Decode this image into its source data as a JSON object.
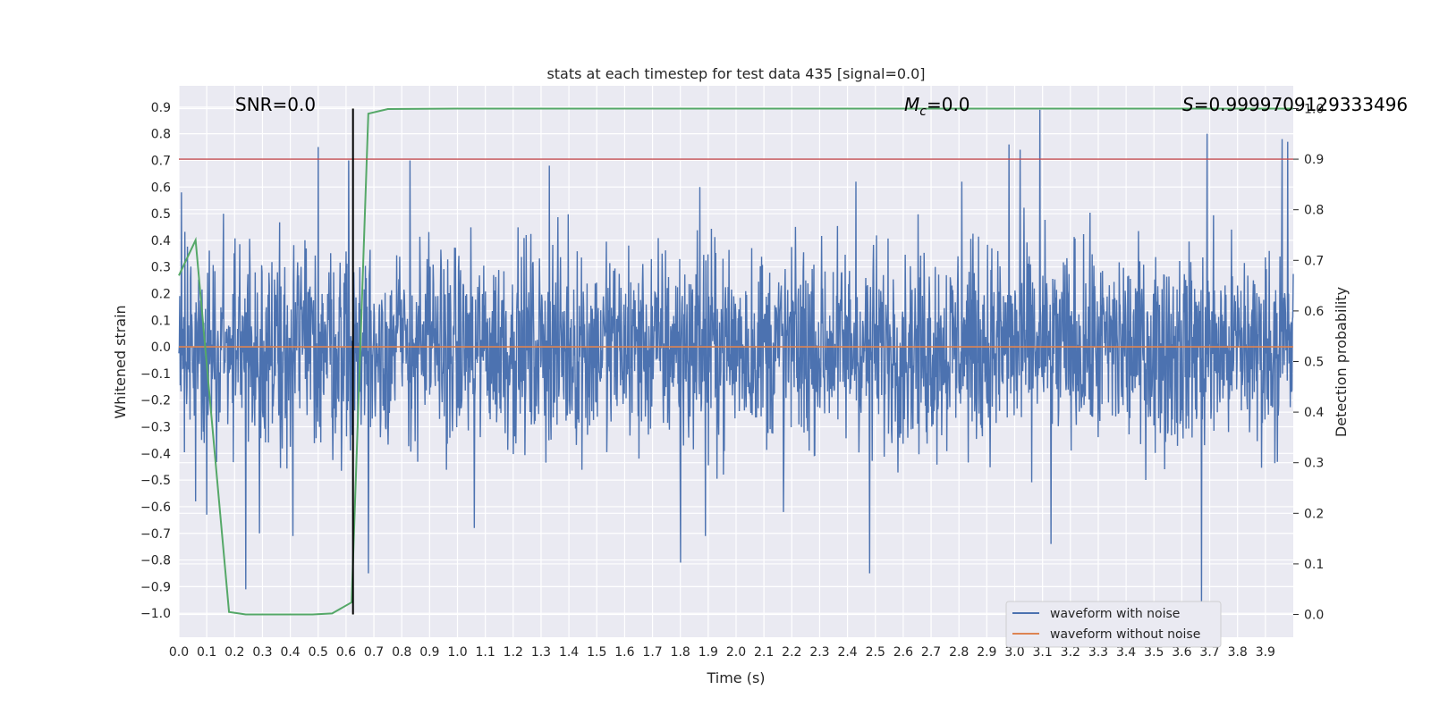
{
  "chart_data": {
    "type": "line",
    "title": "stats at each timestep for test data 435 [signal=0.0]",
    "xlabel": "Time (s)",
    "ylabel": "Whitened strain",
    "y2label": "Detection probability",
    "xlim": [
      0.0,
      4.0
    ],
    "ylim": [
      -1.09,
      0.98
    ],
    "y2lim": [
      -0.045,
      1.045
    ],
    "xticks": [
      "0.0",
      "0.1",
      "0.2",
      "0.3",
      "0.4",
      "0.5",
      "0.6",
      "0.7",
      "0.8",
      "0.9",
      "1.0",
      "1.1",
      "1.2",
      "1.3",
      "1.4",
      "1.5",
      "1.6",
      "1.7",
      "1.8",
      "1.9",
      "2.0",
      "2.1",
      "2.2",
      "2.3",
      "2.4",
      "2.5",
      "2.6",
      "2.7",
      "2.8",
      "2.9",
      "3.0",
      "3.1",
      "3.2",
      "3.3",
      "3.4",
      "3.5",
      "3.6",
      "3.7",
      "3.8",
      "3.9"
    ],
    "yticks": [
      "0.9",
      "0.8",
      "0.7",
      "0.6",
      "0.5",
      "0.4",
      "0.3",
      "0.2",
      "0.1",
      "0.0",
      "−0.1",
      "−0.2",
      "−0.3",
      "−0.4",
      "−0.5",
      "−0.6",
      "−0.7",
      "−0.8",
      "−0.9",
      "−1.0"
    ],
    "y2ticks": [
      "1.0",
      "0.9",
      "0.8",
      "0.7",
      "0.6",
      "0.5",
      "0.4",
      "0.3",
      "0.2",
      "0.1",
      "0.0"
    ],
    "grid": true,
    "legend_position": "bottom-right",
    "annotations": {
      "snr": "SNR=0.0",
      "mc_symbol": "M",
      "mc_sub": "c",
      "mc_value": "=0.0",
      "s_symbol": "S",
      "s_value": "=0.9999709129333496"
    },
    "series": [
      {
        "name": "waveform with noise",
        "color": "#4c72b0",
        "style": "dense noise",
        "typical_range": [
          -0.45,
          0.45
        ],
        "spikes": [
          {
            "x": 0.01,
            "y": 0.58
          },
          {
            "x": 0.06,
            "y": -0.58
          },
          {
            "x": 0.1,
            "y": -0.63
          },
          {
            "x": 0.16,
            "y": 0.5
          },
          {
            "x": 0.24,
            "y": -0.91
          },
          {
            "x": 0.29,
            "y": 0.77
          },
          {
            "x": 0.29,
            "y": -0.7
          },
          {
            "x": 0.41,
            "y": -0.71
          },
          {
            "x": 0.5,
            "y": 0.75
          },
          {
            "x": 0.61,
            "y": 0.7
          },
          {
            "x": 0.68,
            "y": -0.85
          },
          {
            "x": 0.83,
            "y": 0.7
          },
          {
            "x": 1.06,
            "y": -0.68
          },
          {
            "x": 1.33,
            "y": 0.68
          },
          {
            "x": 1.8,
            "y": -0.81
          },
          {
            "x": 1.87,
            "y": 0.6
          },
          {
            "x": 1.89,
            "y": -0.71
          },
          {
            "x": 2.17,
            "y": -0.62
          },
          {
            "x": 2.43,
            "y": 0.62
          },
          {
            "x": 2.48,
            "y": -0.85
          },
          {
            "x": 2.81,
            "y": 0.62
          },
          {
            "x": 2.98,
            "y": 0.76
          },
          {
            "x": 3.02,
            "y": 0.74
          },
          {
            "x": 3.09,
            "y": 0.89
          },
          {
            "x": 3.13,
            "y": -0.74
          },
          {
            "x": 3.67,
            "y": -0.99
          },
          {
            "x": 3.69,
            "y": 0.8
          },
          {
            "x": 3.96,
            "y": 0.78
          },
          {
            "x": 3.98,
            "y": 0.77
          }
        ]
      },
      {
        "name": "waveform without noise",
        "color": "#dd8452",
        "y": 0.0
      },
      {
        "color": "#55a868",
        "axis": "right",
        "x": [
          0.0,
          0.06,
          0.18,
          0.24,
          0.3,
          0.36,
          0.42,
          0.48,
          0.55,
          0.62,
          0.68,
          0.75,
          1.0,
          2.0,
          3.0,
          4.0
        ],
        "values": [
          0.67,
          0.74,
          0.005,
          0.0,
          0.0,
          0.0,
          0.0,
          0.0,
          0.002,
          0.024,
          0.99,
          0.999,
          0.9999,
          0.9999,
          0.9999,
          0.9999
        ]
      }
    ],
    "threshold_line": {
      "axis": "right",
      "value": 0.9,
      "color": "#c44e52"
    },
    "marker_line": {
      "x": 0.625,
      "color": "#000000"
    }
  }
}
